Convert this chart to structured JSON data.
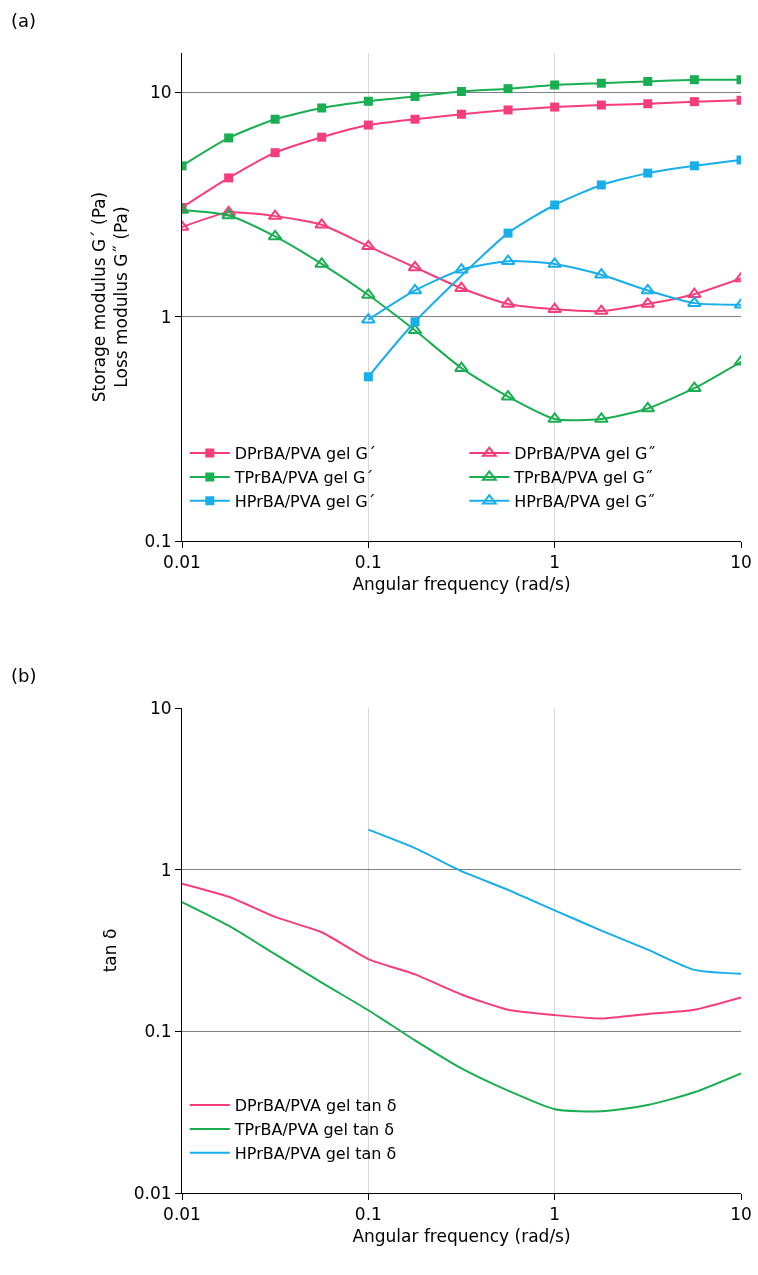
{
  "chart_data": [
    {
      "type": "line",
      "annotations": [
        "(a)"
      ],
      "xlabel": "Angular frequency (rad/s)",
      "ylabel": "Storage modulus G´ (Pa)\nLoss modulus G˝ (Pa)",
      "x": [
        0.01,
        0.0178,
        0.0316,
        0.0562,
        0.1,
        0.178,
        0.316,
        0.562,
        1,
        1.78,
        3.16,
        5.62,
        10
      ],
      "series": [
        {
          "name": "DPrBA/PVA gel G´",
          "color": "#f53d7a",
          "marker": "square",
          "values": [
            3.07,
            4.16,
            5.39,
            6.32,
            7.16,
            7.6,
            8.0,
            8.36,
            8.61,
            8.79,
            8.91,
            9.1,
            9.23
          ]
        },
        {
          "name": "DPrBA/PVA gel G˝",
          "color": "#f53d7a",
          "marker": "triangle",
          "values": [
            2.51,
            2.92,
            2.81,
            2.57,
            2.06,
            1.66,
            1.34,
            1.14,
            1.08,
            1.06,
            1.14,
            1.26,
            1.48
          ]
        },
        {
          "name": "TPrBA/PVA gel G´",
          "color": "#1aae52",
          "marker": "square",
          "values": [
            4.71,
            6.27,
            7.6,
            8.53,
            9.14,
            9.6,
            10.1,
            10.4,
            10.8,
            11.0,
            11.2,
            11.4,
            11.4
          ]
        },
        {
          "name": "TPrBA/PVA gel G˝",
          "color": "#1aae52",
          "marker": "triangle",
          "values": [
            2.99,
            2.83,
            2.28,
            1.72,
            1.25,
            0.87,
            0.59,
            0.44,
            0.35,
            0.35,
            0.39,
            0.48,
            0.63
          ]
        },
        {
          "name": "HPrBA/PVA gel G´",
          "color": "#17aeea",
          "marker": "square",
          "values": [
            null,
            null,
            null,
            null,
            0.54,
            0.95,
            null,
            2.36,
            3.15,
            3.87,
            4.37,
            4.71,
            5.0
          ]
        },
        {
          "name": "HPrBA/PVA gel G˝",
          "color": "#17aeea",
          "marker": "triangle",
          "values": [
            null,
            null,
            null,
            null,
            0.97,
            1.31,
            1.62,
            1.77,
            1.72,
            1.54,
            1.31,
            1.15,
            1.13
          ]
        }
      ],
      "log": "xy",
      "xlim": [
        0.01,
        10
      ],
      "xticks": [
        0.01,
        0.1,
        1,
        10
      ],
      "ylim": [
        0.1,
        15
      ],
      "yticks": [
        0.1,
        1,
        10
      ],
      "grid": true,
      "legend": "bottom left"
    },
    {
      "type": "line",
      "annotations": [
        "(b)"
      ],
      "xlabel": "Angular frequency (rad/s)",
      "ylabel": "tan δ",
      "marker": "none",
      "x": [
        0.01,
        0.0178,
        0.0316,
        0.0562,
        0.1,
        0.178,
        0.316,
        0.562,
        1,
        1.78,
        3.16,
        5.62,
        10
      ],
      "series": [
        {
          "name": "DPrBA/PVA gel tan δ",
          "color": "#f53d7a",
          "values": [
            0.82,
            0.68,
            0.51,
            0.41,
            0.28,
            0.225,
            0.169,
            0.136,
            0.126,
            0.12,
            0.128,
            0.136,
            0.162
          ]
        },
        {
          "name": "TPrBA/PVA gel tan δ",
          "color": "#1aae52",
          "values": [
            0.63,
            0.45,
            0.3,
            0.2,
            0.135,
            0.088,
            0.059,
            0.043,
            0.033,
            0.032,
            0.035,
            0.042,
            0.055
          ]
        },
        {
          "name": "HPrBA/PVA gel tan δ",
          "color": "#17aeea",
          "values": [
            null,
            null,
            null,
            null,
            1.77,
            1.36,
            0.98,
            0.75,
            0.56,
            0.42,
            0.32,
            0.24,
            0.227
          ]
        }
      ],
      "log": "xy",
      "xlim": [
        0.01,
        10
      ],
      "xticks": [
        0.01,
        0.1,
        1,
        10
      ],
      "ylim": [
        0.01,
        10
      ],
      "yticks": [
        0.01,
        0.1,
        1,
        10
      ],
      "grid": true,
      "legend": "bottom left"
    }
  ]
}
